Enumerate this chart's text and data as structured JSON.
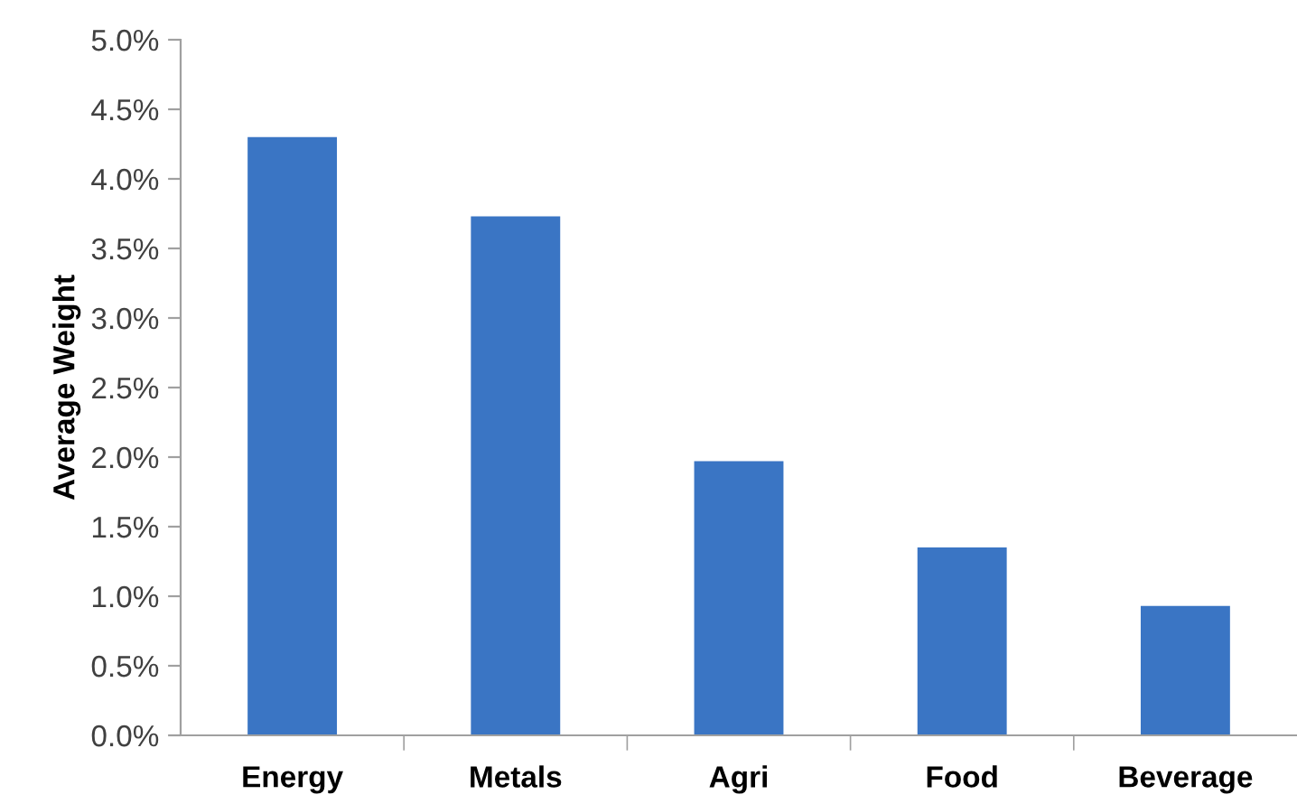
{
  "chart_data": {
    "type": "bar",
    "ylabel": "Average Weight",
    "categories": [
      "Energy",
      "Metals",
      "Agri",
      "Food",
      "Beverage"
    ],
    "values": [
      4.3,
      3.73,
      1.97,
      1.35,
      0.93
    ],
    "color": "#3a75c4",
    "ylim": [
      0,
      5
    ],
    "yticks": [
      {
        "value": 0,
        "label": "0.0%"
      },
      {
        "value": 0.5,
        "label": "0.5%"
      },
      {
        "value": 1,
        "label": "1.0%"
      },
      {
        "value": 1.5,
        "label": "1.5%"
      },
      {
        "value": 2,
        "label": "2.0%"
      },
      {
        "value": 2.5,
        "label": "2.5%"
      },
      {
        "value": 3,
        "label": "3.0%"
      },
      {
        "value": 3.5,
        "label": "3.5%"
      },
      {
        "value": 4,
        "label": "4.0%"
      },
      {
        "value": 4.5,
        "label": "4.5%"
      },
      {
        "value": 5,
        "label": "5.0%"
      }
    ],
    "grid": false,
    "legend": false
  }
}
